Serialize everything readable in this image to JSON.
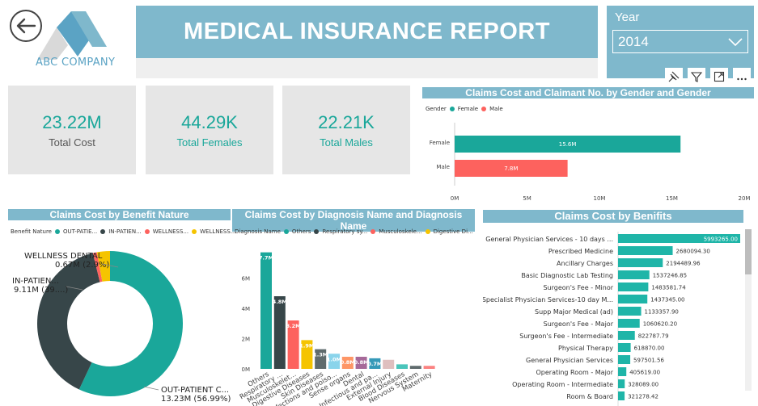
{
  "company": {
    "name": "ABC COMPANY"
  },
  "report": {
    "title": "MEDICAL INSURANCE REPORT"
  },
  "filter": {
    "label": "Year",
    "value": "2014"
  },
  "kpis": [
    {
      "value": "23.22M",
      "label": "Total Cost"
    },
    {
      "value": "44.29K",
      "label": "Total Females"
    },
    {
      "value": "22.21K",
      "label": "Total Males"
    }
  ],
  "colors": {
    "accent": "#7fb8cc",
    "teal": "#1aa79a",
    "dark": "#374649",
    "red": "#fd625e",
    "yellow": "#f5c400",
    "purple": "#8a3fb5",
    "blue": "#5f9ec6",
    "brown": "#a66f3b",
    "teal_header": "#1fb5a8"
  },
  "icons": [
    "back-arrow-icon",
    "pin-icon",
    "filter-icon",
    "focus-mode-icon",
    "more-options-icon",
    "chevron-down-icon"
  ],
  "gender_chart": {
    "title": "Claims Cost and Claimant No. by Gender and Gender",
    "legend_title": "Gender",
    "legend": [
      "Female",
      "Male"
    ],
    "x_ticks": [
      "0M",
      "5M",
      "10M",
      "15M",
      "20M"
    ]
  },
  "benefit_chart": {
    "title": "Claims Cost by Benefit Nature",
    "legend_title": "Benefit Nature",
    "legend": [
      "OUT-PATIE...",
      "IN-PATIEN...",
      "WELLNESS...",
      "WELLNESS..."
    ],
    "labels": [
      {
        "line1": "WELLNESS DENTAL",
        "line2": "0.67M (2.9%)"
      },
      {
        "line1": "IN-PATIEN...",
        "line2": "9.11M (39....)"
      },
      {
        "line1": "OUT-PATIENT C...",
        "line2": "13.23M (56.99%)"
      }
    ]
  },
  "diagnosis_chart": {
    "title": "Claims Cost by Diagnosis Name and Diagnosis Name",
    "legend_title": "Diagnosis Name",
    "legend": [
      "Others",
      "Respiratory sy...",
      "Musculoskele...",
      "Digestive Di..."
    ],
    "y_ticks": [
      "0M",
      "2M",
      "4M",
      "6M"
    ]
  },
  "benefits_chart": {
    "title": "Claims Cost by Benifits"
  },
  "chart_data": [
    {
      "type": "bar",
      "title": "Claims Cost and Claimant No. by Gender and Gender",
      "orientation": "horizontal",
      "categories": [
        "Female",
        "Male"
      ],
      "values": [
        15.6,
        7.8
      ],
      "data_labels": [
        "15.6M",
        "7.8M"
      ],
      "unit": "M",
      "xlim": [
        0,
        20
      ],
      "colors": [
        "#1aa79a",
        "#fd625e"
      ],
      "legend_position": "top-left"
    },
    {
      "type": "pie",
      "subtype": "donut",
      "title": "Claims Cost by Benefit Nature",
      "categories": [
        "OUT-PATIENT C...",
        "IN-PATIEN...",
        "WELLNESS...",
        "WELLNESS DENTAL"
      ],
      "values": [
        13.23,
        9.11,
        0.21,
        0.67
      ],
      "percent": [
        56.99,
        39.2,
        0.9,
        2.9
      ],
      "colors": [
        "#1aa79a",
        "#374649",
        "#fd625e",
        "#f5c400"
      ],
      "legend_position": "top-left"
    },
    {
      "type": "bar",
      "title": "Claims Cost by Diagnosis Name and Diagnosis Name",
      "categories": [
        "Others",
        "Respiratory ...",
        "Musculoskelet...",
        "Digestive Diseases",
        "Skin Diseases",
        "Infections and poiso...",
        "Sense organs",
        "Dental",
        "Infectious and pa...",
        "External Injury",
        "Blood Diseases",
        "Nervous System",
        "Maternity"
      ],
      "values": [
        7.7,
        4.8,
        3.2,
        1.9,
        1.3,
        1.0,
        0.8,
        0.8,
        0.7,
        0.6,
        0.3,
        0.2,
        0.2
      ],
      "data_labels": [
        "7.7M",
        "4.8M",
        "3.2M",
        "1.9M",
        "1.3M",
        "1.0M",
        "0.8M",
        "0.8M",
        "0.7M",
        "",
        "",
        "",
        ""
      ],
      "colors": [
        "#1aa79a",
        "#374649",
        "#fd625e",
        "#f5c400",
        "#5f6b6d",
        "#8ad4eb",
        "#fe9666",
        "#a66999",
        "#3599b8",
        "#dfbfbf",
        "#4ac5bb",
        "#5f6b6d",
        "#fb8281"
      ],
      "ylim": [
        0,
        8
      ],
      "legend_position": "top-left"
    },
    {
      "type": "bar",
      "title": "Claims Cost by Benifits",
      "orientation": "horizontal",
      "categories": [
        "General Physician Services - 10 days ...",
        "Prescribed Medicine",
        "Ancillary Charges",
        "Basic Diagnostic Lab Testing",
        "Surgeon's Fee - Minor",
        "Specialist Physician Services-10 day M...",
        "Supp Major Medical (ad)",
        "Surgeon's Fee - Major",
        "Surgeon's Fee - Intermediate",
        "Physical Therapy",
        "General Physician Services",
        "Operating Room - Major",
        "Operating Room - Intermediate",
        "Room & Board"
      ],
      "values": [
        5993265.0,
        2680094.3,
        2194489.96,
        1537246.85,
        1483581.74,
        1437345.0,
        1133357.9,
        1060620.2,
        822787.79,
        618870.0,
        597501.56,
        405619.0,
        328089.0,
        321278.42
      ],
      "data_labels": [
        "5993265.00",
        "2680094.30",
        "2194489.96",
        "1537246.85",
        "1483581.74",
        "1437345.00",
        "1133357.90",
        "1060620.20",
        "822787.79",
        "618870.00",
        "597501.56",
        "405619.00",
        "328089.00",
        "321278.42"
      ],
      "color": "#1fb5a8"
    }
  ]
}
